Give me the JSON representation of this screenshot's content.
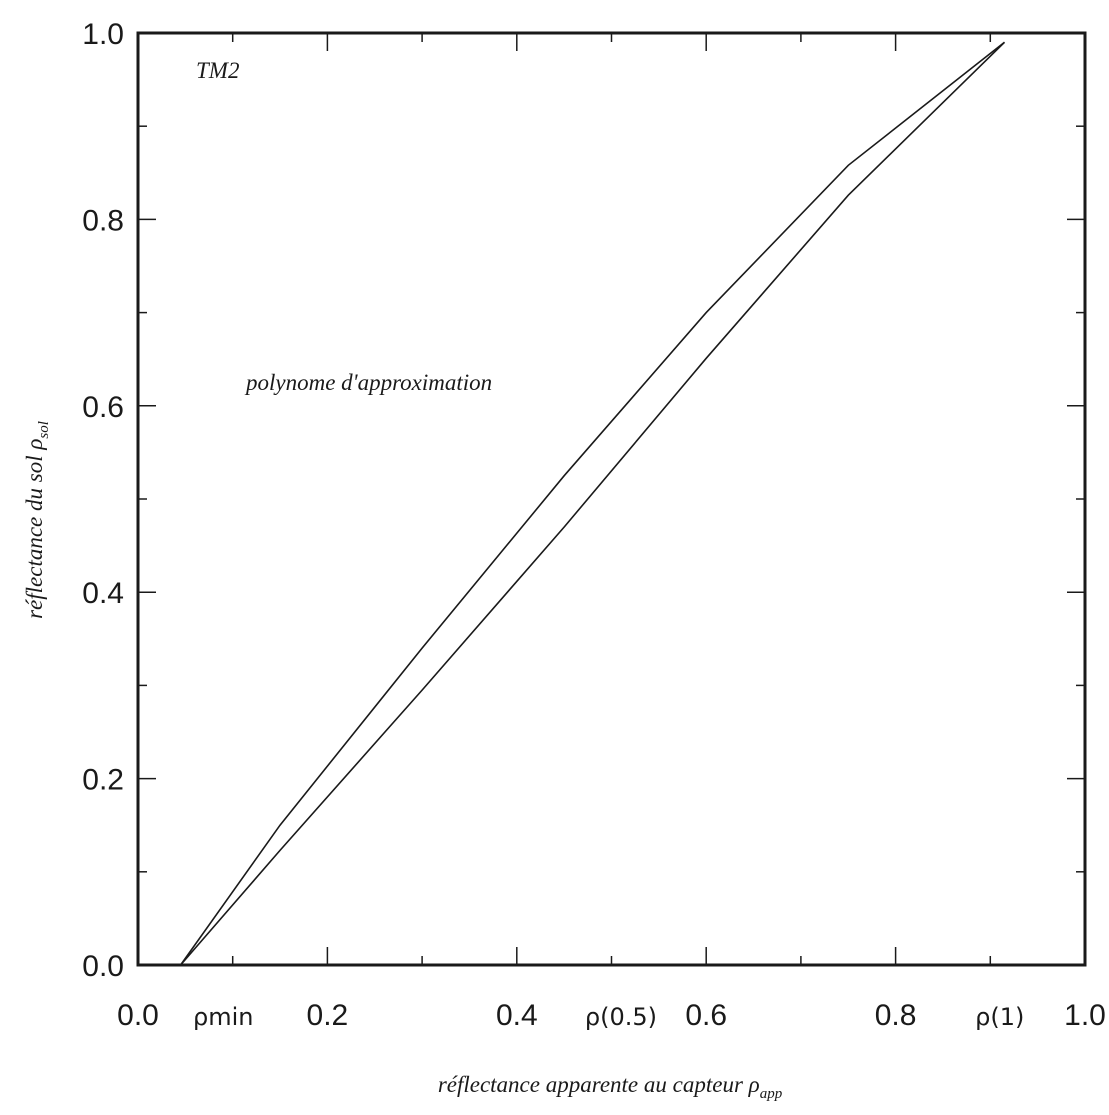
{
  "chart_data": {
    "type": "line",
    "title": "",
    "xlabel": "réflectance apparente au capteur ρ",
    "xlabel_sub": "app",
    "ylabel": "réflectance du sol ρ",
    "ylabel_sub": "sol",
    "xlim": [
      0,
      1
    ],
    "ylim": [
      0,
      1
    ],
    "x_ticks": [
      "0.0",
      "0.2",
      "0.4",
      "0.6",
      "0.8",
      "1.0"
    ],
    "y_ticks": [
      "0.0",
      "0.2",
      "0.4",
      "0.6",
      "0.8",
      "1.0"
    ],
    "x_tick_values": [
      0,
      0.2,
      0.4,
      0.6,
      0.8,
      1.0
    ],
    "y_tick_values": [
      0,
      0.2,
      0.4,
      0.6,
      0.8,
      1.0
    ],
    "x_minor_step": 0.1,
    "y_minor_step": 0.1,
    "grid": false,
    "handwritten_marks": [
      {
        "text": "ρmin",
        "x": 0.09
      },
      {
        "text": "ρ(0.5)",
        "x": 0.51
      },
      {
        "text": "ρ(1)",
        "x": 0.91
      }
    ],
    "annotations": [
      {
        "text": "TM2",
        "x": 0.13,
        "y": 0.955
      },
      {
        "text": "polynome d'approximation",
        "x": 0.24,
        "y": 0.61
      }
    ],
    "series": [
      {
        "x": [
          0.045,
          0.15,
          0.3,
          0.45,
          0.6,
          0.75,
          0.915
        ],
        "y": [
          0.0,
          0.15,
          0.34,
          0.525,
          0.7,
          0.858,
          0.99
        ]
      },
      {
        "x": [
          0.045,
          0.15,
          0.3,
          0.45,
          0.6,
          0.75,
          0.915
        ],
        "y": [
          0.0,
          0.123,
          0.295,
          0.47,
          0.651,
          0.826,
          0.99
        ]
      }
    ]
  }
}
